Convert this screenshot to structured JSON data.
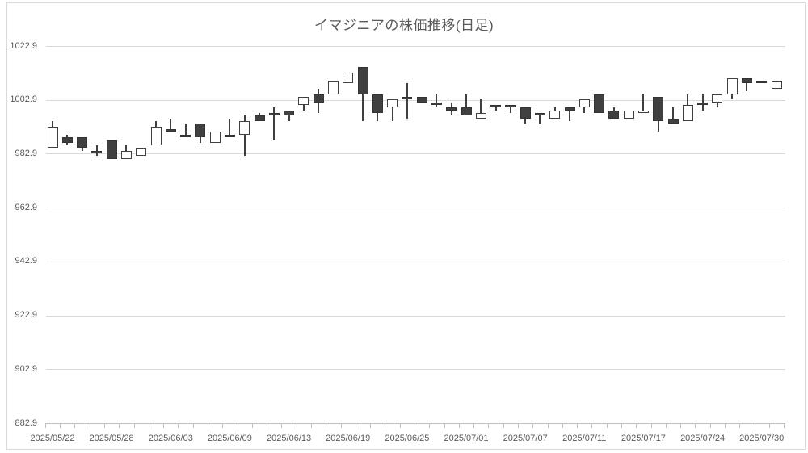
{
  "chart_data": {
    "type": "candlestick",
    "title": "イマジニアの株価推移(日足)",
    "grid": true,
    "legend": "none",
    "y_axis": {
      "min": 882.9,
      "max": 1022.9,
      "step": 20,
      "tick_labels": [
        "1022.9",
        "1002.9",
        "982.9",
        "962.9",
        "942.9",
        "922.9",
        "902.9",
        "882.9"
      ]
    },
    "x_axis": {
      "tick_labels": [
        "2025/05/22",
        "2025/05/28",
        "2025/06/03",
        "2025/06/09",
        "2025/06/13",
        "2025/06/19",
        "2025/06/25",
        "2025/07/01",
        "2025/07/07",
        "2025/07/11",
        "2025/07/17",
        "2025/07/24",
        "2025/07/30"
      ],
      "label_every_n_candles": 4
    },
    "candles": [
      {
        "date": "2025/05/22",
        "open": 985,
        "high": 995,
        "low": 985,
        "close": 993
      },
      {
        "date": "2025/05/23",
        "open": 989,
        "high": 990,
        "low": 986,
        "close": 987
      },
      {
        "date": "2025/05/26",
        "open": 989,
        "high": 989,
        "low": 984,
        "close": 985
      },
      {
        "date": "2025/05/27",
        "open": 984,
        "high": 986,
        "low": 982,
        "close": 983
      },
      {
        "date": "2025/05/28",
        "open": 988,
        "high": 988,
        "low": 981,
        "close": 981
      },
      {
        "date": "2025/05/29",
        "open": 981,
        "high": 986,
        "low": 981,
        "close": 984
      },
      {
        "date": "2025/05/30",
        "open": 982,
        "high": 985,
        "low": 982,
        "close": 985
      },
      {
        "date": "2025/06/02",
        "open": 986,
        "high": 995,
        "low": 986,
        "close": 993
      },
      {
        "date": "2025/06/03",
        "open": 992,
        "high": 996,
        "low": 991,
        "close": 991
      },
      {
        "date": "2025/06/04",
        "open": 990,
        "high": 994,
        "low": 989,
        "close": 989
      },
      {
        "date": "2025/06/05",
        "open": 994,
        "high": 994,
        "low": 987,
        "close": 989
      },
      {
        "date": "2025/06/06",
        "open": 987,
        "high": 991,
        "low": 987,
        "close": 991
      },
      {
        "date": "2025/06/09",
        "open": 990,
        "high": 996,
        "low": 989,
        "close": 989
      },
      {
        "date": "2025/06/10",
        "open": 990,
        "high": 997,
        "low": 982,
        "close": 995
      },
      {
        "date": "2025/06/11",
        "open": 997,
        "high": 998,
        "low": 995,
        "close": 995
      },
      {
        "date": "2025/06/12",
        "open": 998,
        "high": 1000,
        "low": 988,
        "close": 997
      },
      {
        "date": "2025/06/13",
        "open": 999,
        "high": 999,
        "low": 995,
        "close": 997
      },
      {
        "date": "2025/06/16",
        "open": 1001,
        "high": 1004,
        "low": 999,
        "close": 1004
      },
      {
        "date": "2025/06/17",
        "open": 1005,
        "high": 1007,
        "low": 998,
        "close": 1002
      },
      {
        "date": "2025/06/18",
        "open": 1005,
        "high": 1010,
        "low": 1005,
        "close": 1010
      },
      {
        "date": "2025/06/19",
        "open": 1009,
        "high": 1013,
        "low": 1009,
        "close": 1013
      },
      {
        "date": "2025/06/20",
        "open": 1015,
        "high": 1015,
        "low": 995,
        "close": 1005
      },
      {
        "date": "2025/06/23",
        "open": 1005,
        "high": 1005,
        "low": 995,
        "close": 998
      },
      {
        "date": "2025/06/24",
        "open": 1000,
        "high": 1003,
        "low": 995,
        "close": 1003
      },
      {
        "date": "2025/06/25",
        "open": 1004,
        "high": 1009,
        "low": 996,
        "close": 1003
      },
      {
        "date": "2025/06/26",
        "open": 1004,
        "high": 1004,
        "low": 1002,
        "close": 1002
      },
      {
        "date": "2025/06/27",
        "open": 1002,
        "high": 1005,
        "low": 1000,
        "close": 1001
      },
      {
        "date": "2025/06/30",
        "open": 1000,
        "high": 1002,
        "low": 997,
        "close": 999
      },
      {
        "date": "2025/07/01",
        "open": 1000,
        "high": 1005,
        "low": 997,
        "close": 997
      },
      {
        "date": "2025/07/02",
        "open": 996,
        "high": 1003,
        "low": 996,
        "close": 998
      },
      {
        "date": "2025/07/03",
        "open": 1001,
        "high": 1001,
        "low": 999,
        "close": 1000
      },
      {
        "date": "2025/07/04",
        "open": 1001,
        "high": 1001,
        "low": 998,
        "close": 1000
      },
      {
        "date": "2025/07/07",
        "open": 1000,
        "high": 1000,
        "low": 994,
        "close": 996
      },
      {
        "date": "2025/07/08",
        "open": 998,
        "high": 998,
        "low": 994,
        "close": 997
      },
      {
        "date": "2025/07/09",
        "open": 996,
        "high": 1000,
        "low": 996,
        "close": 999
      },
      {
        "date": "2025/07/10",
        "open": 1000,
        "high": 1000,
        "low": 995,
        "close": 999
      },
      {
        "date": "2025/07/11",
        "open": 1000,
        "high": 1003,
        "low": 998,
        "close": 1003
      },
      {
        "date": "2025/07/14",
        "open": 1005,
        "high": 1005,
        "low": 998,
        "close": 998
      },
      {
        "date": "2025/07/15",
        "open": 999,
        "high": 1000,
        "low": 996,
        "close": 996
      },
      {
        "date": "2025/07/16",
        "open": 996,
        "high": 999,
        "low": 996,
        "close": 999
      },
      {
        "date": "2025/07/17",
        "open": 998,
        "high": 1005,
        "low": 998,
        "close": 999
      },
      {
        "date": "2025/07/18",
        "open": 1004,
        "high": 1004,
        "low": 991,
        "close": 995
      },
      {
        "date": "2025/07/22",
        "open": 996,
        "high": 1000,
        "low": 994,
        "close": 994
      },
      {
        "date": "2025/07/23",
        "open": 995,
        "high": 1005,
        "low": 995,
        "close": 1001
      },
      {
        "date": "2025/07/24",
        "open": 1002,
        "high": 1005,
        "low": 999,
        "close": 1001
      },
      {
        "date": "2025/07/25",
        "open": 1002,
        "high": 1005,
        "low": 1000,
        "close": 1005
      },
      {
        "date": "2025/07/28",
        "open": 1005,
        "high": 1011,
        "low": 1003,
        "close": 1011
      },
      {
        "date": "2025/07/29",
        "open": 1011,
        "high": 1011,
        "low": 1006,
        "close": 1009
      },
      {
        "date": "2025/07/30",
        "open": 1010,
        "high": 1010,
        "low": 1009,
        "close": 1009
      },
      {
        "date": "2025/07/31",
        "open": 1007,
        "high": 1010,
        "low": 1007,
        "close": 1010
      }
    ],
    "colors": {
      "up_fill": "#ffffff",
      "down_fill": "#404040",
      "outline": "#404040",
      "gridline": "#d9d9d9",
      "axis_line": "#bfbfbf",
      "axis_text": "#595959",
      "title_text": "#595959",
      "frame": "#d9d9d9"
    }
  }
}
